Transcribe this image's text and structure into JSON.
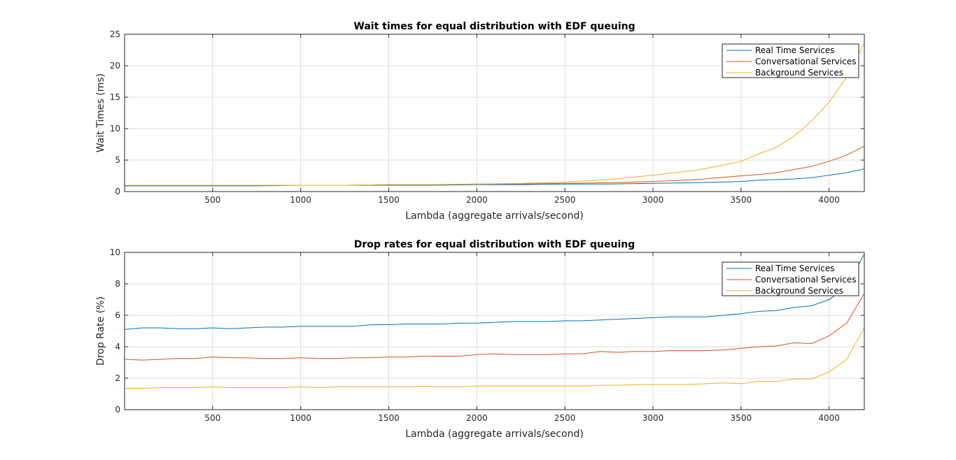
{
  "chart_data": [
    {
      "type": "line",
      "title": "Wait times for equal distribution with EDF queuing",
      "xlabel": "Lambda (aggregate arrivals/second)",
      "ylabel": "Wait Times (ms)",
      "xlim": [
        0,
        4200
      ],
      "ylim": [
        0,
        25
      ],
      "xticks": [
        500,
        1000,
        1500,
        2000,
        2500,
        3000,
        3500,
        4000
      ],
      "yticks": [
        0,
        5,
        10,
        15,
        20,
        25
      ],
      "grid": true,
      "legend_position": "top-right",
      "series": [
        {
          "name": "Real Time Services",
          "color": "#0072BD",
          "x": [
            0,
            250,
            500,
            750,
            1000,
            1250,
            1500,
            1750,
            2000,
            2250,
            2500,
            2750,
            3000,
            3250,
            3500,
            3600,
            3700,
            3800,
            3900,
            4000,
            4100,
            4200
          ],
          "y": [
            0.9,
            0.9,
            0.9,
            0.9,
            1.0,
            1.0,
            1.0,
            1.0,
            1.1,
            1.1,
            1.2,
            1.2,
            1.3,
            1.4,
            1.6,
            1.8,
            1.9,
            2.0,
            2.2,
            2.6,
            3.0,
            3.6
          ]
        },
        {
          "name": "Conversational Services",
          "color": "#D95319",
          "x": [
            0,
            250,
            500,
            750,
            1000,
            1250,
            1500,
            1750,
            2000,
            2250,
            2500,
            2750,
            3000,
            3250,
            3500,
            3600,
            3700,
            3800,
            3900,
            4000,
            4100,
            4200
          ],
          "y": [
            1.0,
            1.0,
            1.0,
            1.0,
            1.0,
            1.0,
            1.1,
            1.1,
            1.2,
            1.2,
            1.3,
            1.4,
            1.6,
            1.9,
            2.5,
            2.7,
            3.0,
            3.5,
            4.0,
            4.8,
            5.8,
            7.2
          ]
        },
        {
          "name": "Background Services",
          "color": "#EDB120",
          "x": [
            0,
            250,
            500,
            750,
            1000,
            1250,
            1500,
            1750,
            2000,
            2250,
            2500,
            2750,
            3000,
            3250,
            3400,
            3500,
            3600,
            3700,
            3800,
            3900,
            4000,
            4100,
            4200
          ],
          "y": [
            1.0,
            1.0,
            1.0,
            1.0,
            1.0,
            1.0,
            1.1,
            1.1,
            1.2,
            1.3,
            1.5,
            1.9,
            2.6,
            3.4,
            4.2,
            4.8,
            6.0,
            7.0,
            8.8,
            11.2,
            14.2,
            18.2,
            23.6
          ]
        }
      ]
    },
    {
      "type": "line",
      "title": "Drop rates for equal distribution with EDF queuing",
      "xlabel": "Lambda (aggregate arrivals/second)",
      "ylabel": "Drop Rate (%)",
      "xlim": [
        0,
        4200
      ],
      "ylim": [
        0,
        10
      ],
      "xticks": [
        500,
        1000,
        1500,
        2000,
        2500,
        3000,
        3500,
        4000
      ],
      "yticks": [
        0,
        2,
        4,
        6,
        8,
        10
      ],
      "grid": true,
      "legend_position": "top-right",
      "series": [
        {
          "name": "Real Time Services",
          "color": "#0072BD",
          "x": [
            0,
            100,
            200,
            300,
            400,
            500,
            600,
            700,
            800,
            900,
            1000,
            1100,
            1200,
            1300,
            1400,
            1500,
            1600,
            1700,
            1800,
            1900,
            2000,
            2100,
            2200,
            2300,
            2400,
            2500,
            2600,
            2700,
            2800,
            2900,
            3000,
            3100,
            3200,
            3300,
            3400,
            3500,
            3600,
            3700,
            3800,
            3900,
            4000,
            4100,
            4200
          ],
          "y": [
            5.1,
            5.2,
            5.2,
            5.15,
            5.15,
            5.2,
            5.15,
            5.2,
            5.25,
            5.25,
            5.3,
            5.3,
            5.3,
            5.3,
            5.4,
            5.4,
            5.45,
            5.45,
            5.45,
            5.5,
            5.5,
            5.55,
            5.6,
            5.6,
            5.6,
            5.65,
            5.65,
            5.7,
            5.75,
            5.8,
            5.85,
            5.9,
            5.9,
            5.9,
            6.0,
            6.1,
            6.25,
            6.3,
            6.5,
            6.6,
            7.0,
            7.8,
            9.9
          ]
        },
        {
          "name": "Conversational Services",
          "color": "#D95319",
          "x": [
            0,
            100,
            200,
            300,
            400,
            500,
            600,
            700,
            800,
            900,
            1000,
            1100,
            1200,
            1300,
            1400,
            1500,
            1600,
            1700,
            1800,
            1900,
            2000,
            2100,
            2200,
            2300,
            2400,
            2500,
            2600,
            2700,
            2800,
            2900,
            3000,
            3100,
            3200,
            3300,
            3400,
            3500,
            3600,
            3700,
            3800,
            3900,
            4000,
            4100,
            4200
          ],
          "y": [
            3.2,
            3.15,
            3.2,
            3.25,
            3.25,
            3.35,
            3.3,
            3.3,
            3.25,
            3.25,
            3.3,
            3.25,
            3.25,
            3.3,
            3.3,
            3.35,
            3.35,
            3.4,
            3.4,
            3.4,
            3.5,
            3.55,
            3.5,
            3.5,
            3.5,
            3.55,
            3.55,
            3.7,
            3.65,
            3.7,
            3.7,
            3.75,
            3.75,
            3.75,
            3.8,
            3.9,
            4.0,
            4.05,
            4.25,
            4.2,
            4.7,
            5.5,
            7.4
          ]
        },
        {
          "name": "Background Services",
          "color": "#EDB120",
          "x": [
            0,
            100,
            200,
            300,
            400,
            500,
            600,
            700,
            800,
            900,
            1000,
            1100,
            1200,
            1300,
            1400,
            1500,
            1600,
            1700,
            1800,
            1900,
            2000,
            2100,
            2200,
            2300,
            2400,
            2500,
            2600,
            2700,
            2800,
            2900,
            3000,
            3100,
            3200,
            3300,
            3400,
            3500,
            3600,
            3700,
            3800,
            3900,
            4000,
            4100,
            4200
          ],
          "y": [
            1.35,
            1.35,
            1.4,
            1.4,
            1.4,
            1.45,
            1.4,
            1.4,
            1.4,
            1.4,
            1.45,
            1.4,
            1.45,
            1.45,
            1.45,
            1.45,
            1.45,
            1.5,
            1.45,
            1.45,
            1.5,
            1.5,
            1.5,
            1.5,
            1.5,
            1.5,
            1.5,
            1.55,
            1.55,
            1.6,
            1.6,
            1.6,
            1.6,
            1.65,
            1.7,
            1.65,
            1.8,
            1.8,
            1.95,
            1.95,
            2.4,
            3.2,
            5.2
          ]
        }
      ]
    }
  ]
}
